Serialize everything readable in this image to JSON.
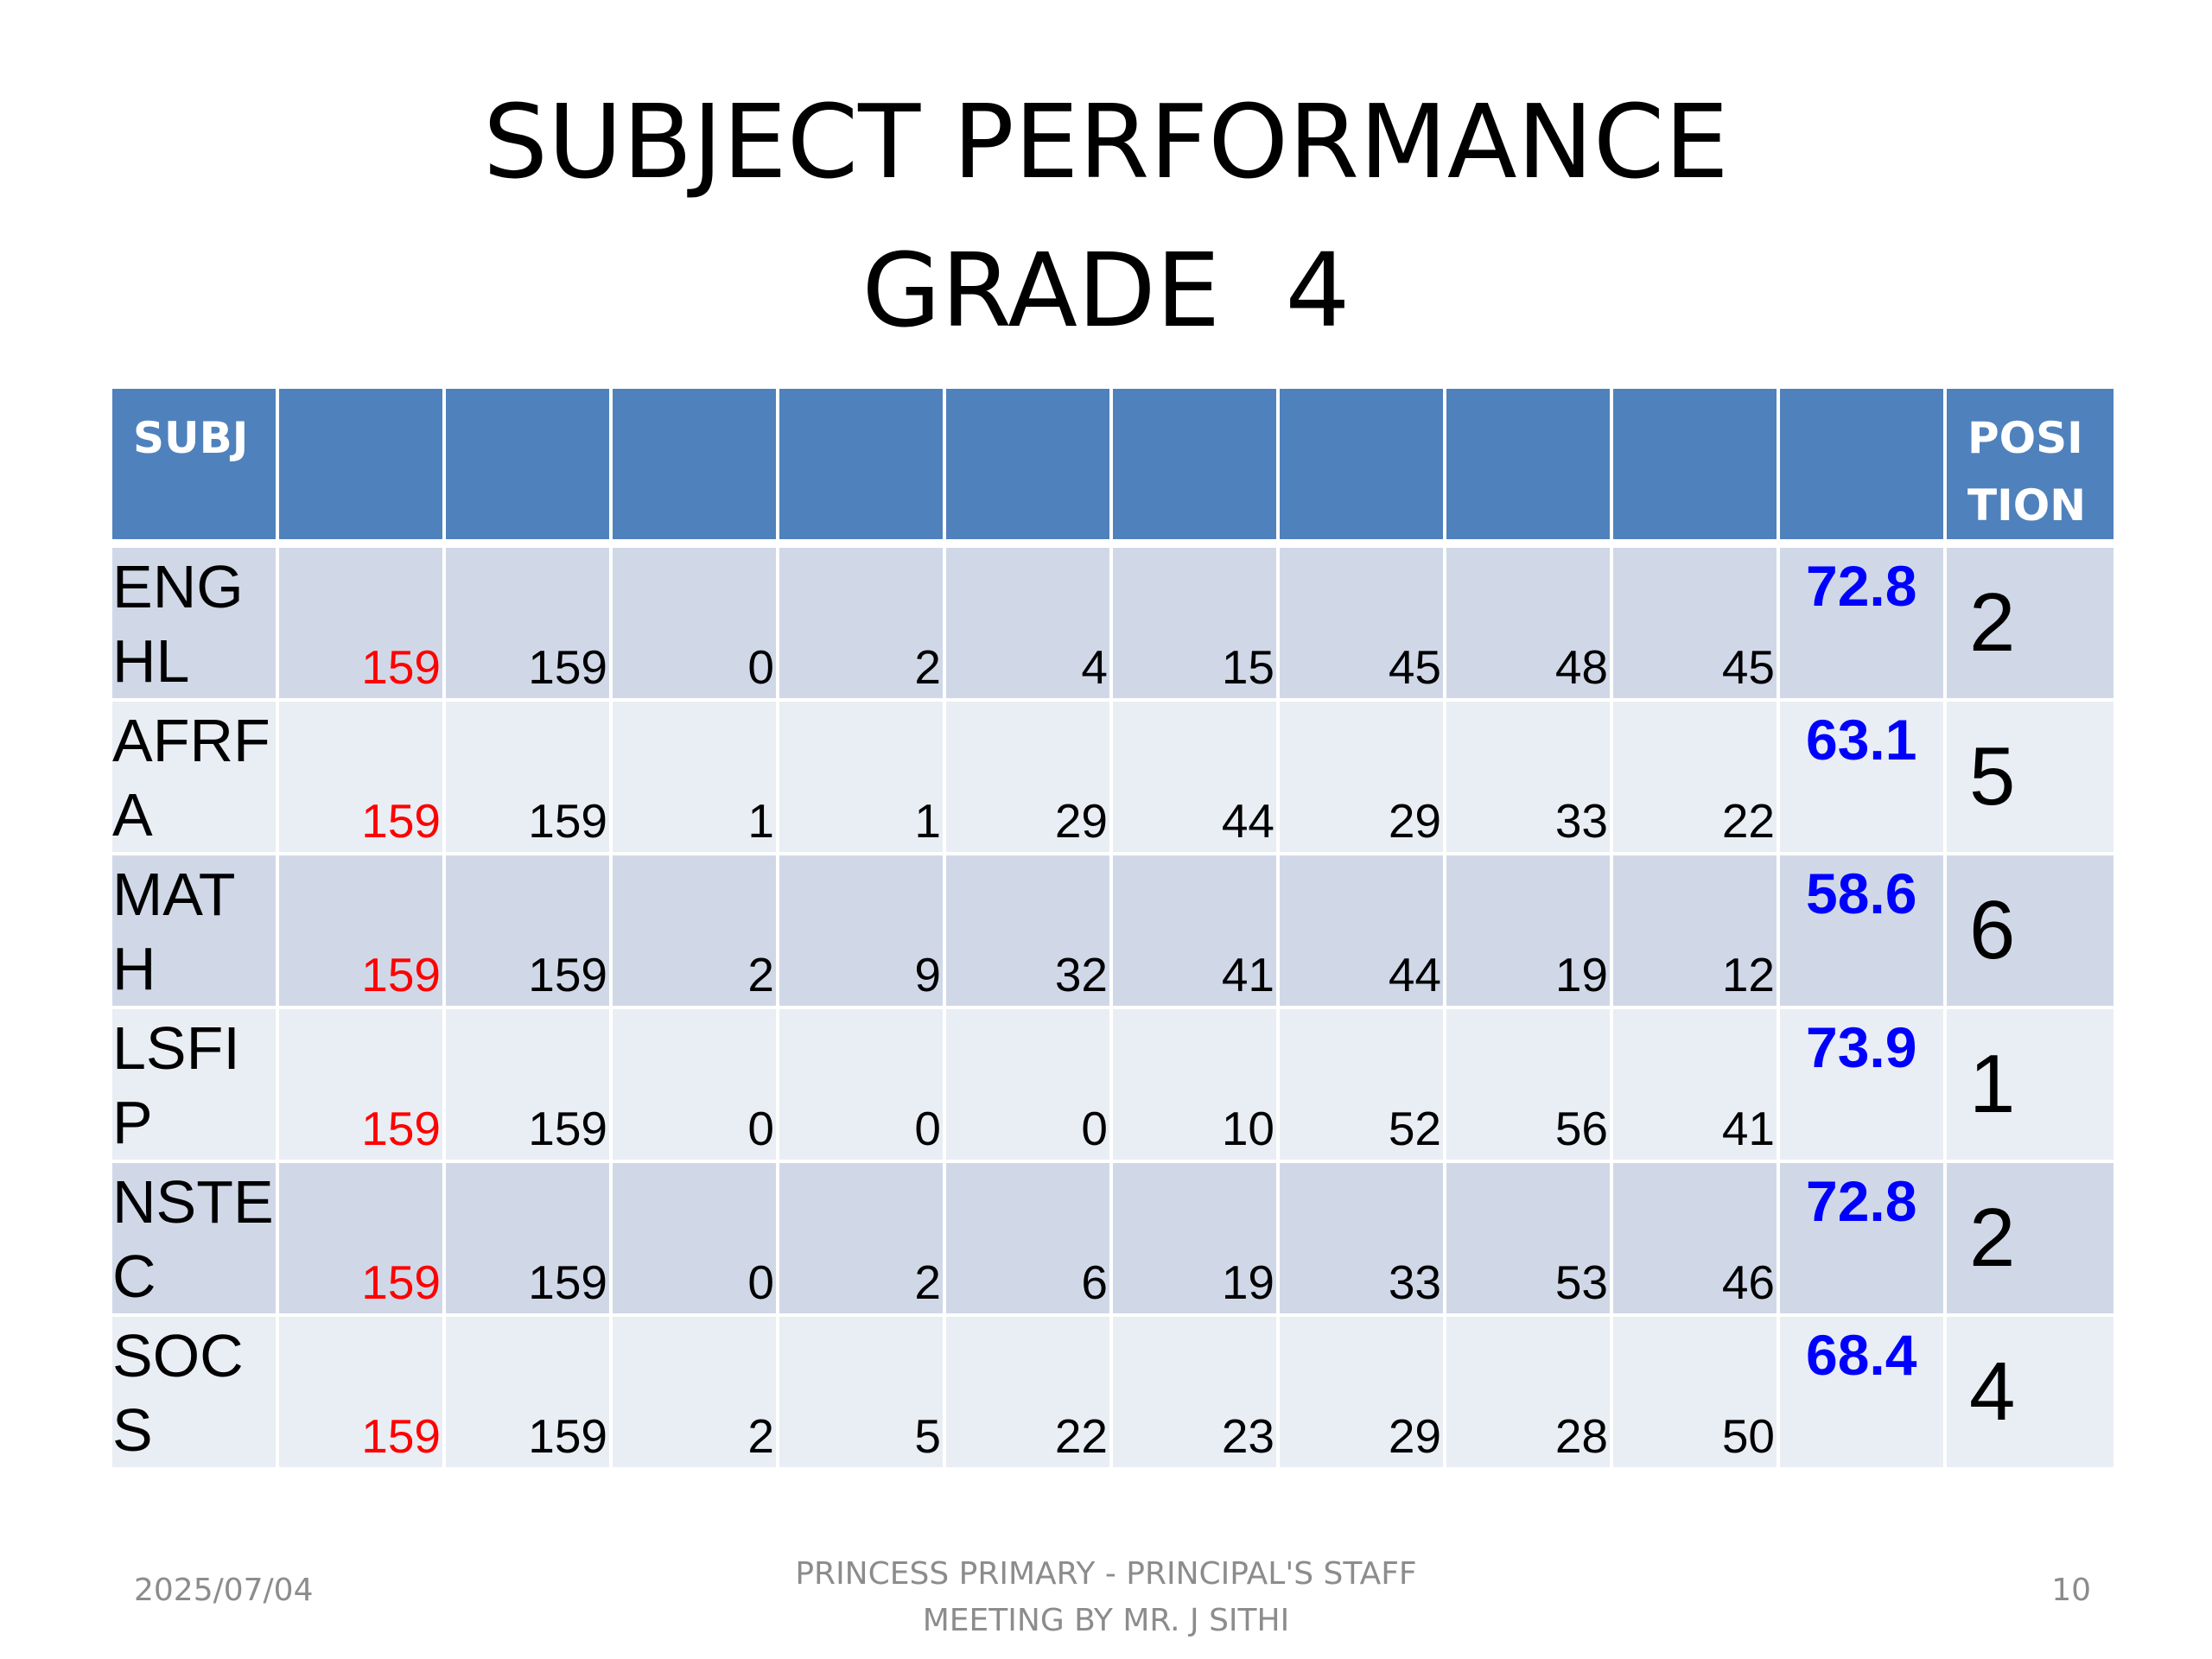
{
  "slide": {
    "title_line1": "SUBJECT PERFORMANCE",
    "title_line2": "GRADE  4"
  },
  "table": {
    "headers": [
      "SUBJ",
      "",
      "",
      "",
      "",
      "",
      "",
      "",
      "",
      "",
      "",
      "POSI TION"
    ],
    "header_first_line1": "SUBJ",
    "header_last_line1": "POSI",
    "header_last_line2": "TION",
    "rows": [
      {
        "subj1": "ENG",
        "subj2": "HL",
        "values": [
          "159",
          "159",
          "0",
          "2",
          "4",
          "15",
          "45",
          "48",
          "45"
        ],
        "average": "72.8",
        "position": "2"
      },
      {
        "subj1": "AFRF",
        "subj2": "A",
        "values": [
          "159",
          "159",
          "1",
          "1",
          "29",
          "44",
          "29",
          "33",
          "22"
        ],
        "average": "63.1",
        "position": "5"
      },
      {
        "subj1": "MAT",
        "subj2": "H",
        "values": [
          "159",
          "159",
          "2",
          "9",
          "32",
          "41",
          "44",
          "19",
          "12"
        ],
        "average": "58.6",
        "position": "6"
      },
      {
        "subj1": "LSFI",
        "subj2": "P",
        "values": [
          "159",
          "159",
          "0",
          "0",
          "0",
          "10",
          "52",
          "56",
          "41"
        ],
        "average": "73.9",
        "position": "1"
      },
      {
        "subj1": "NSTE",
        "subj2": "C",
        "values": [
          "159",
          "159",
          "0",
          "2",
          "6",
          "19",
          "33",
          "53",
          "46"
        ],
        "average": "72.8",
        "position": "2"
      },
      {
        "subj1": "SOC",
        "subj2": "S",
        "values": [
          "159",
          "159",
          "2",
          "5",
          "22",
          "23",
          "29",
          "28",
          "50"
        ],
        "average": "68.4",
        "position": "4"
      }
    ]
  },
  "footer": {
    "date": "2025/07/04",
    "center_line1": "PRINCESS PRIMARY - PRINCIPAL'S STAFF",
    "center_line2": "MEETING BY MR. J SITHI",
    "page_number": "10"
  },
  "colors": {
    "header_bg": "#4f81bd",
    "row_odd": "#d0d8e8",
    "row_even": "#e9edf4",
    "learners_value": "#ff0000",
    "average_value": "#0000ff"
  }
}
